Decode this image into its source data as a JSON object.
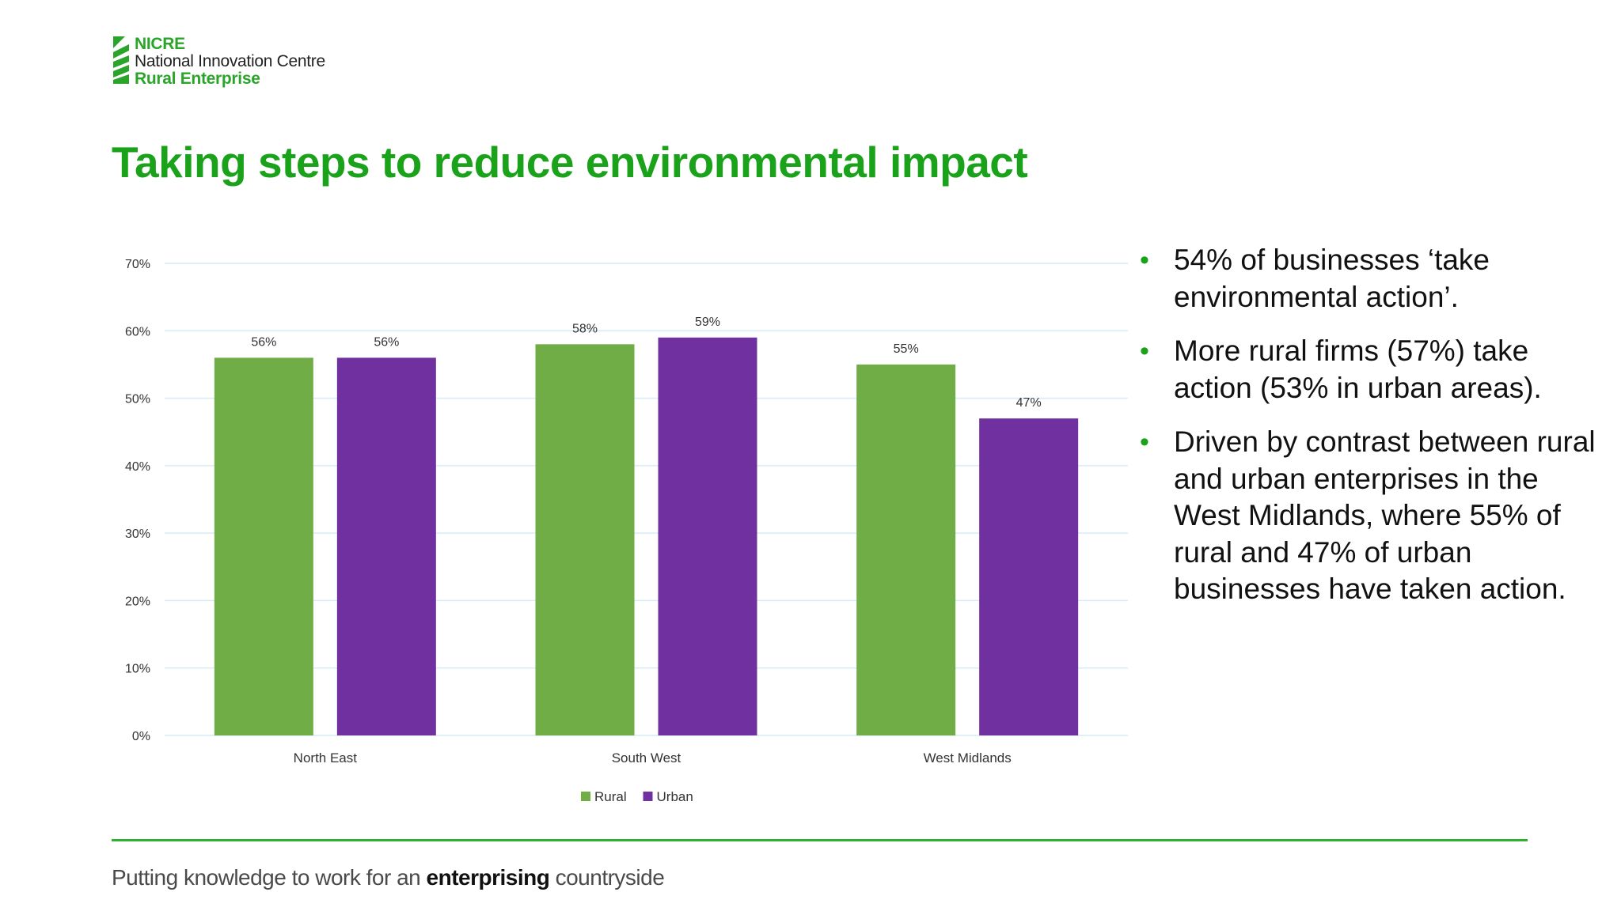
{
  "logo": {
    "line1": "NICRE",
    "line2": "National Innovation Centre",
    "line3": "Rural Enterprise",
    "brand_color": "#2aa52a"
  },
  "title": "Taking steps to reduce environmental impact",
  "chart_data": {
    "type": "bar",
    "categories": [
      "North East",
      "South West",
      "West Midlands"
    ],
    "series": [
      {
        "name": "Rural",
        "color": "#70ad47",
        "values": [
          56,
          58,
          55
        ]
      },
      {
        "name": "Urban",
        "color": "#7030a0",
        "values": [
          56,
          59,
          47
        ]
      }
    ],
    "value_labels": [
      [
        "56%",
        "58%",
        "55%"
      ],
      [
        "56%",
        "59%",
        "47%"
      ]
    ],
    "yticks": [
      "0%",
      "10%",
      "20%",
      "30%",
      "40%",
      "50%",
      "60%",
      "70%"
    ],
    "ylim": [
      0,
      70
    ],
    "ystep": 10,
    "grid": true,
    "legend": "bottom-center",
    "title": "",
    "xlabel": "",
    "ylabel": ""
  },
  "bullets": [
    "54% of businesses ‘take environmental action’.",
    "More rural firms (57%) take action (53% in urban areas).",
    "Driven by contrast between rural and urban enterprises in the West Midlands, where 55% of rural and 47% of urban businesses have taken action."
  ],
  "bullet_symbol": "•",
  "footer": {
    "tagline_before": "Putting knowledge to work for an ",
    "tagline_emphasis": "enterprising",
    "tagline_after": " countryside"
  }
}
